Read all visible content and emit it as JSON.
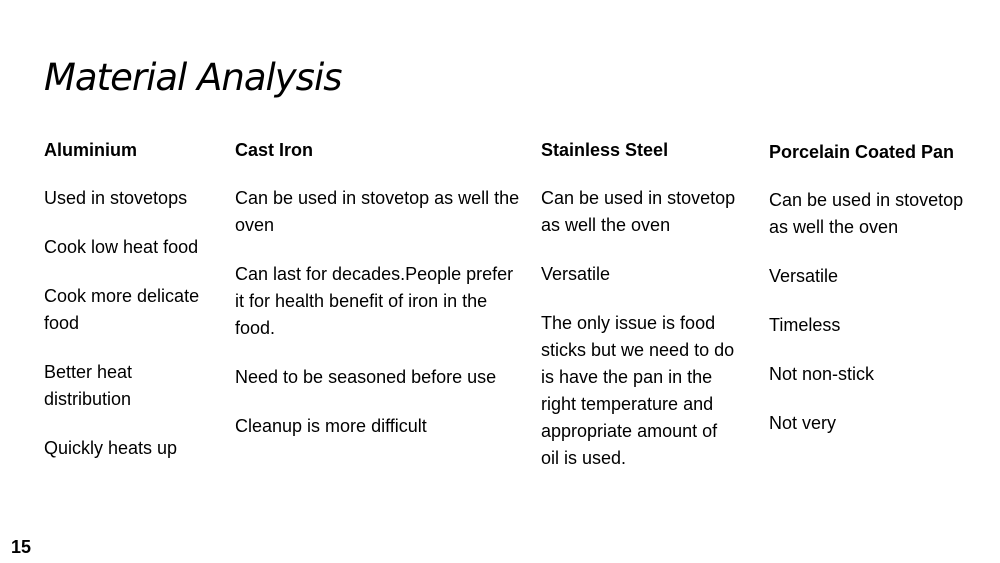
{
  "title": "Material Analysis",
  "page_number": "15",
  "columns": [
    {
      "heading": "Aluminium",
      "items": [
        "Used in stovetops",
        "Cook low heat food",
        "Cook more delicate food",
        "Better heat distribution",
        "Quickly heats up"
      ]
    },
    {
      "heading": "Cast Iron",
      "items": [
        "Can be used in stovetop as well the oven",
        "Can last for decades.People prefer it for health benefit of iron in the food.",
        "Need to be seasoned before use",
        "Cleanup is more difficult"
      ]
    },
    {
      "heading": "Stainless Steel",
      "items": [
        "Can be used in stovetop as well the oven",
        "Versatile",
        "The only issue is food sticks but we need to do is have the pan in the right temperature and appropriate amount of oil is used."
      ]
    },
    {
      "heading": "Porcelain Coated Pan",
      "items": [
        "Can be used in stovetop as well the oven",
        "Versatile",
        "Timeless",
        "Not non-stick",
        "Not very"
      ]
    }
  ]
}
